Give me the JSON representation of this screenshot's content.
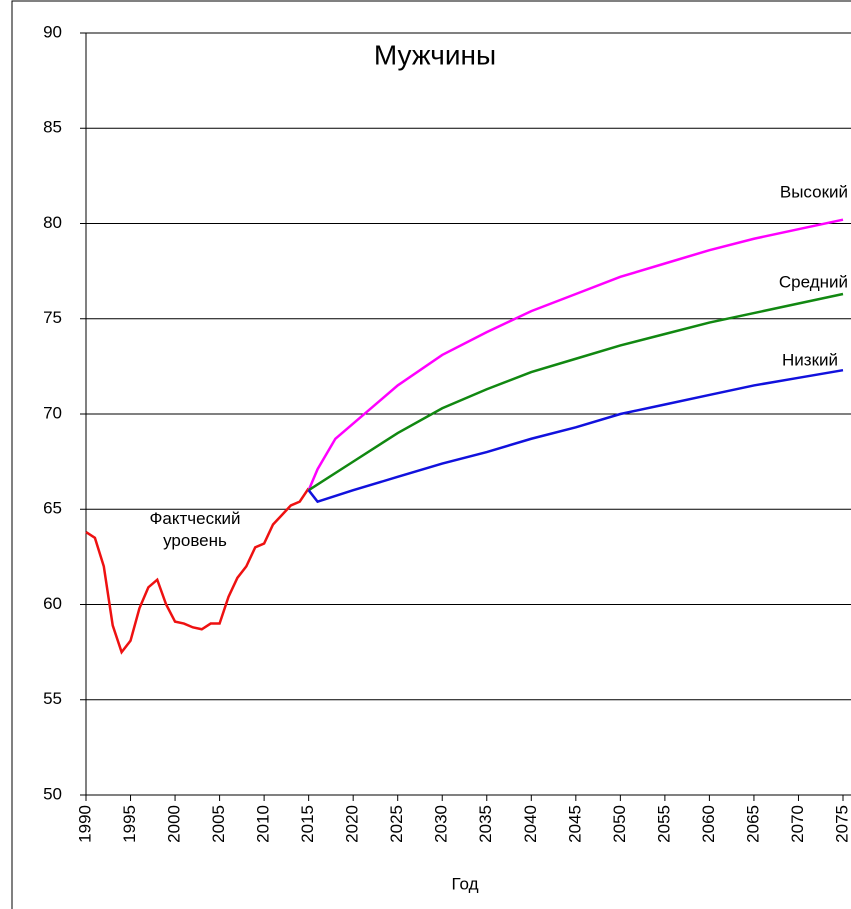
{
  "chart_data": {
    "type": "line",
    "title": "Мужчины",
    "x_label": "Год",
    "xlim": [
      1990,
      2075
    ],
    "ylim": [
      50,
      90
    ],
    "xticks": [
      1990,
      1995,
      2000,
      2005,
      2010,
      2015,
      2020,
      2025,
      2030,
      2035,
      2040,
      2045,
      2050,
      2055,
      2060,
      2065,
      2070,
      2075
    ],
    "yticks": [
      50,
      55,
      60,
      65,
      70,
      75,
      80,
      85,
      90
    ],
    "grid": true,
    "series": [
      {
        "name": "Фактческий уровень",
        "color": "#ee1111",
        "x": [
          1990,
          1991,
          1992,
          1993,
          1994,
          1995,
          1996,
          1997,
          1998,
          1999,
          2000,
          2001,
          2002,
          2003,
          2004,
          2005,
          2006,
          2007,
          2008,
          2009,
          2010,
          2011,
          2012,
          2013,
          2014,
          2015
        ],
        "values": [
          63.8,
          63.5,
          62.0,
          58.9,
          57.5,
          58.1,
          59.8,
          60.9,
          61.3,
          60.0,
          59.1,
          59.0,
          58.8,
          58.7,
          59.0,
          59.0,
          60.4,
          61.4,
          62.0,
          63.0,
          63.2,
          64.2,
          64.7,
          65.2,
          65.4,
          66.1
        ]
      },
      {
        "name": "Высокий",
        "color": "#ff00ff",
        "x": [
          2015,
          2016,
          2018,
          2020,
          2025,
          2030,
          2035,
          2040,
          2045,
          2050,
          2055,
          2060,
          2065,
          2070,
          2075
        ],
        "values": [
          66.0,
          67.1,
          68.7,
          69.5,
          71.5,
          73.1,
          74.3,
          75.4,
          76.3,
          77.2,
          77.9,
          78.6,
          79.2,
          79.7,
          80.2
        ]
      },
      {
        "name": "Средний",
        "color": "#118811",
        "x": [
          2015,
          2020,
          2025,
          2030,
          2035,
          2040,
          2045,
          2050,
          2055,
          2060,
          2065,
          2070,
          2075
        ],
        "values": [
          66.0,
          67.5,
          69.0,
          70.3,
          71.3,
          72.2,
          72.9,
          73.6,
          74.2,
          74.8,
          75.3,
          75.8,
          76.3
        ]
      },
      {
        "name": "Низкий",
        "color": "#1111dd",
        "x": [
          2015,
          2016,
          2020,
          2025,
          2030,
          2035,
          2040,
          2045,
          2050,
          2055,
          2060,
          2065,
          2070,
          2075
        ],
        "values": [
          66.0,
          65.4,
          66.0,
          66.7,
          67.4,
          68.0,
          68.7,
          69.3,
          70.0,
          70.5,
          71.0,
          71.5,
          71.9,
          72.3
        ]
      }
    ]
  }
}
